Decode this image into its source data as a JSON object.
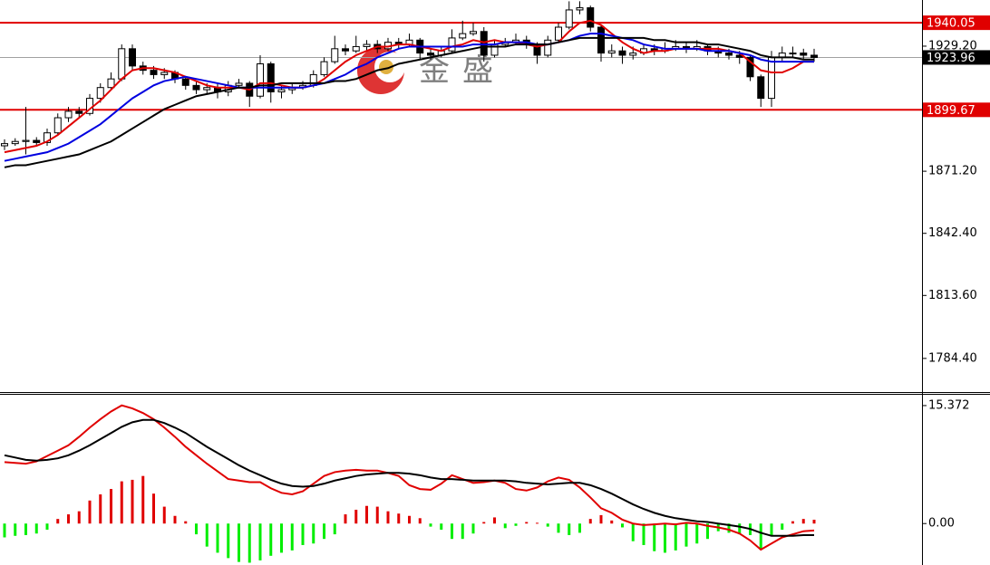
{
  "chart_data": [
    {
      "type": "candlestick",
      "watermark": "金盛",
      "ylim": [
        1768.8,
        1950.6
      ],
      "yticks": [
        {
          "value": 1929.2,
          "label": "1929.20"
        },
        {
          "value": 1871.2,
          "label": "1871.20"
        },
        {
          "value": 1842.4,
          "label": "1842.40"
        },
        {
          "value": 1813.6,
          "label": "1813.60"
        },
        {
          "value": 1784.4,
          "label": "1784.40"
        }
      ],
      "hlines": [
        {
          "value": 1940.05,
          "color": "#e00000"
        },
        {
          "value": 1899.67,
          "color": "#e00000"
        },
        {
          "value": 1923.96,
          "color": "#000000"
        }
      ],
      "ohlc": [
        [
          1883,
          1886,
          1881,
          1884
        ],
        [
          1884,
          1886.5,
          1883,
          1885
        ],
        [
          1885,
          1901,
          1879,
          1885.5
        ],
        [
          1885.5,
          1887,
          1883,
          1884.5
        ],
        [
          1884.5,
          1891,
          1883,
          1889
        ],
        [
          1889,
          1898,
          1888,
          1896
        ],
        [
          1896,
          1901,
          1894,
          1899
        ],
        [
          1899,
          1901,
          1896,
          1898
        ],
        [
          1898,
          1907,
          1897,
          1905
        ],
        [
          1905,
          1912,
          1903,
          1910
        ],
        [
          1910,
          1917,
          1909,
          1914
        ],
        [
          1914,
          1930,
          1913,
          1928
        ],
        [
          1928,
          1930,
          1918,
          1920
        ],
        [
          1920,
          1922,
          1916,
          1918
        ],
        [
          1918,
          1920,
          1914,
          1916
        ],
        [
          1916,
          1919,
          1914,
          1917
        ],
        [
          1917,
          1918,
          1912,
          1914
        ],
        [
          1914,
          1915,
          1909,
          1911
        ],
        [
          1911,
          1913,
          1907,
          1909
        ],
        [
          1909,
          1912,
          1907,
          1910
        ],
        [
          1910,
          1912,
          1905,
          1908
        ],
        [
          1908,
          1913,
          1906,
          1911
        ],
        [
          1911,
          1914,
          1910,
          1912
        ],
        [
          1912,
          1913,
          1901,
          1906
        ],
        [
          1906,
          1925,
          1905,
          1921
        ],
        [
          1921,
          1922,
          1903,
          1908
        ],
        [
          1908,
          1911,
          1905,
          1909
        ],
        [
          1909,
          1912,
          1907,
          1910
        ],
        [
          1910,
          1913,
          1909,
          1911
        ],
        [
          1911,
          1918,
          1910,
          1916
        ],
        [
          1916,
          1924,
          1915,
          1922
        ],
        [
          1922,
          1934,
          1921,
          1928
        ],
        [
          1928,
          1930,
          1925,
          1927
        ],
        [
          1927,
          1934,
          1926,
          1929
        ],
        [
          1929,
          1932,
          1927,
          1930
        ],
        [
          1930,
          1932,
          1926,
          1928
        ],
        [
          1928,
          1933,
          1927,
          1931
        ],
        [
          1931,
          1933,
          1928,
          1930
        ],
        [
          1930,
          1935,
          1929,
          1932
        ],
        [
          1932,
          1933,
          1923,
          1926
        ],
        [
          1926,
          1928,
          1923,
          1925
        ],
        [
          1925,
          1929,
          1924,
          1927
        ],
        [
          1927,
          1937,
          1926,
          1933
        ],
        [
          1933,
          1941,
          1932,
          1935
        ],
        [
          1935,
          1940,
          1934,
          1936
        ],
        [
          1936,
          1938,
          1922,
          1925
        ],
        [
          1925,
          1932,
          1924,
          1930
        ],
        [
          1930,
          1933,
          1929,
          1931
        ],
        [
          1931,
          1935,
          1930,
          1932
        ],
        [
          1932,
          1934,
          1928,
          1930
        ],
        [
          1930,
          1931,
          1921,
          1925
        ],
        [
          1925,
          1934,
          1924,
          1932
        ],
        [
          1932,
          1940,
          1931,
          1938
        ],
        [
          1938,
          1950,
          1937,
          1946
        ],
        [
          1946,
          1950,
          1944,
          1947
        ],
        [
          1947,
          1948,
          1936,
          1938
        ],
        [
          1938,
          1939,
          1922,
          1926
        ],
        [
          1926,
          1930,
          1924,
          1927
        ],
        [
          1927,
          1929,
          1921,
          1925
        ],
        [
          1925,
          1929,
          1923,
          1926
        ],
        [
          1926,
          1930,
          1925,
          1928
        ],
        [
          1928,
          1930,
          1925,
          1927
        ],
        [
          1927,
          1931,
          1926,
          1928
        ],
        [
          1928,
          1932,
          1927,
          1929
        ],
        [
          1929,
          1931,
          1926,
          1928
        ],
        [
          1928,
          1932,
          1927,
          1929
        ],
        [
          1929,
          1930,
          1925,
          1927
        ],
        [
          1927,
          1929,
          1924,
          1926
        ],
        [
          1926,
          1928,
          1923,
          1925
        ],
        [
          1925,
          1927,
          1921,
          1924
        ],
        [
          1924,
          1925,
          1913,
          1915
        ],
        [
          1915,
          1916,
          1901,
          1905
        ],
        [
          1905,
          1927,
          1901,
          1924
        ],
        [
          1924,
          1929,
          1922,
          1926
        ],
        [
          1926,
          1929,
          1924,
          1926
        ],
        [
          1926,
          1928,
          1923,
          1925
        ],
        [
          1925,
          1928,
          1922,
          1923.96
        ]
      ],
      "series": [
        {
          "color": "#e00000",
          "values": [
            1880,
            1881,
            1882,
            1883,
            1885,
            1888,
            1892,
            1896,
            1900,
            1904,
            1909,
            1914,
            1918,
            1919,
            1919,
            1918,
            1917,
            1915,
            1913,
            1911,
            1910,
            1910,
            1910,
            1909,
            1912,
            1912,
            1911,
            1910,
            1910,
            1911,
            1914,
            1918,
            1922,
            1925,
            1927,
            1929,
            1929,
            1930,
            1930,
            1929,
            1928,
            1927,
            1929,
            1930,
            1932,
            1931,
            1932,
            1931,
            1931,
            1930,
            1929,
            1930,
            1931,
            1936,
            1940,
            1941,
            1939,
            1935,
            1931,
            1928,
            1926,
            1927,
            1927,
            1928,
            1928,
            1928,
            1928,
            1928,
            1927,
            1926,
            1922,
            1918,
            1917,
            1917,
            1919,
            1922,
            1922
          ]
        },
        {
          "color": "#0000e0",
          "values": [
            1876,
            1877,
            1878,
            1879,
            1880,
            1882,
            1884,
            1887,
            1890,
            1893,
            1897,
            1901,
            1905,
            1908,
            1911,
            1913,
            1914,
            1915,
            1914,
            1913,
            1912,
            1911,
            1910,
            1910,
            1910,
            1910,
            1910,
            1910,
            1910,
            1911,
            1912,
            1914,
            1916,
            1919,
            1921,
            1924,
            1926,
            1928,
            1929,
            1929,
            1929,
            1929,
            1929,
            1929,
            1930,
            1930,
            1930,
            1931,
            1931,
            1931,
            1930,
            1930,
            1931,
            1932,
            1934,
            1935,
            1935,
            1934,
            1933,
            1932,
            1930,
            1929,
            1928,
            1928,
            1928,
            1928,
            1927,
            1927,
            1927,
            1926,
            1925,
            1923,
            1922,
            1922,
            1922,
            1922,
            1922
          ]
        },
        {
          "color": "#000000",
          "values": [
            1873,
            1874,
            1874,
            1875,
            1876,
            1877,
            1878,
            1879,
            1881,
            1883,
            1885,
            1888,
            1891,
            1894,
            1897,
            1900,
            1902,
            1904,
            1906,
            1907,
            1908,
            1909,
            1910,
            1910,
            1911,
            1911,
            1912,
            1912,
            1912,
            1912,
            1912,
            1913,
            1913,
            1914,
            1916,
            1918,
            1919,
            1921,
            1922,
            1923,
            1924,
            1925,
            1926,
            1927,
            1928,
            1929,
            1929,
            1929,
            1930,
            1930,
            1930,
            1930,
            1931,
            1932,
            1933,
            1933,
            1933,
            1933,
            1933,
            1933,
            1933,
            1932,
            1932,
            1931,
            1931,
            1931,
            1930,
            1930,
            1929,
            1928,
            1927,
            1925,
            1924,
            1924,
            1924,
            1923,
            1923
          ]
        }
      ]
    },
    {
      "type": "macd",
      "ylim": [
        -5.4,
        16.78
      ],
      "yticks": [
        15.372,
        {
          "value": 0,
          "label": "0.00"
        }
      ],
      "up_color": "#e00000",
      "down_color": "#00ee00",
      "histogram": [
        -1.8,
        -1.6,
        -1.5,
        -1.3,
        -0.8,
        0.6,
        1.2,
        1.6,
        3.0,
        3.8,
        4.5,
        5.5,
        5.7,
        6.2,
        3.9,
        2.2,
        1.0,
        0.3,
        -1.4,
        -3.0,
        -3.8,
        -4.5,
        -5.0,
        -5.1,
        -4.8,
        -4.2,
        -3.8,
        -3.5,
        -2.8,
        -2.6,
        -2.0,
        -1.4,
        1.2,
        1.8,
        2.3,
        2.2,
        1.6,
        1.3,
        1.0,
        0.7,
        -0.4,
        -0.8,
        -2.0,
        -2.0,
        -1.3,
        0.2,
        0.8,
        -0.6,
        -0.3,
        0.2,
        0.1,
        -0.4,
        -1.2,
        -1.5,
        -1.2,
        0.6,
        1.1,
        0.4,
        -0.5,
        -2.3,
        -2.8,
        -3.6,
        -3.8,
        -3.5,
        -3.0,
        -2.6,
        -2.0,
        -1.0,
        -1.2,
        -1.4,
        -1.5,
        -3.3,
        -1.6,
        -0.8,
        0.3,
        0.6,
        0.5
      ],
      "series": [
        {
          "color": "#e00000",
          "values": [
            8.0,
            7.9,
            7.8,
            8.1,
            8.8,
            9.5,
            10.2,
            11.3,
            12.5,
            13.6,
            14.6,
            15.4,
            15.0,
            14.4,
            13.6,
            12.5,
            11.3,
            10.0,
            8.9,
            7.8,
            6.8,
            5.8,
            5.6,
            5.4,
            5.4,
            4.6,
            4.0,
            3.8,
            4.2,
            5.2,
            6.2,
            6.7,
            6.9,
            7.0,
            6.9,
            6.9,
            6.6,
            6.2,
            5.0,
            4.5,
            4.4,
            5.2,
            6.3,
            5.8,
            5.3,
            5.4,
            5.6,
            5.3,
            4.5,
            4.3,
            4.7,
            5.5,
            6.0,
            5.7,
            4.7,
            3.4,
            2.0,
            1.4,
            0.5,
            0.0,
            -0.2,
            -0.1,
            0.0,
            -0.1,
            0.1,
            0.0,
            -0.3,
            -0.5,
            -0.8,
            -1.3,
            -2.2,
            -3.4,
            -2.6,
            -1.8,
            -1.4,
            -1.0,
            -0.9
          ]
        },
        {
          "color": "#000000",
          "values": [
            8.9,
            8.6,
            8.3,
            8.2,
            8.3,
            8.5,
            8.9,
            9.5,
            10.2,
            11.0,
            11.8,
            12.6,
            13.2,
            13.5,
            13.5,
            13.1,
            12.5,
            11.8,
            10.9,
            10.0,
            9.2,
            8.4,
            7.6,
            6.9,
            6.3,
            5.7,
            5.2,
            4.9,
            4.8,
            4.9,
            5.2,
            5.6,
            5.9,
            6.2,
            6.4,
            6.5,
            6.6,
            6.6,
            6.5,
            6.3,
            6.0,
            5.8,
            5.8,
            5.7,
            5.6,
            5.6,
            5.6,
            5.6,
            5.5,
            5.3,
            5.2,
            5.1,
            5.2,
            5.3,
            5.3,
            5.0,
            4.5,
            3.9,
            3.2,
            2.5,
            1.9,
            1.4,
            1.0,
            0.7,
            0.5,
            0.3,
            0.2,
            0.0,
            -0.2,
            -0.4,
            -0.7,
            -1.2,
            -1.6,
            -1.6,
            -1.6,
            -1.5,
            -1.5
          ]
        }
      ]
    }
  ]
}
